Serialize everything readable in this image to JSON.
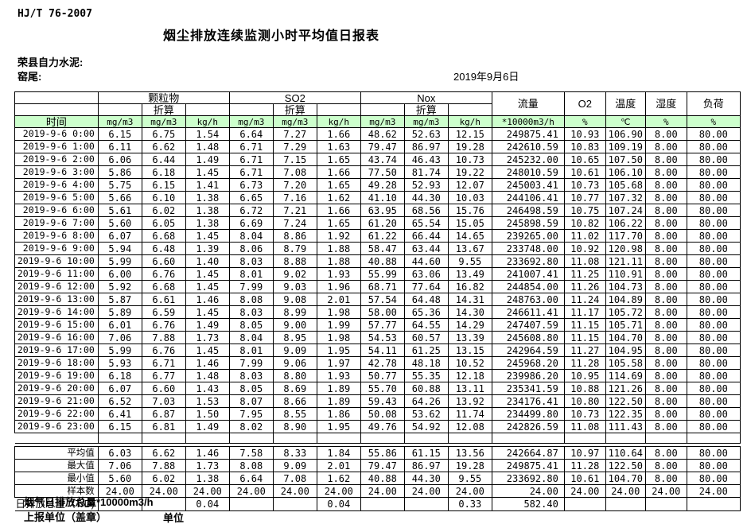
{
  "page": {
    "standard": "HJ/T  76-2007",
    "title": "烟尘排放连续监测小时平均值日报表",
    "company": "荣县自力水泥:",
    "station": "窑尾:",
    "date": "2019年9月6日"
  },
  "colors": {
    "header_green": "#ccffcc",
    "border": "#000000",
    "background": "#ffffff"
  },
  "table": {
    "header": {
      "time": "时间",
      "groups": [
        {
          "name": "颗粒物",
          "converted": "折算",
          "units": [
            "mg/m3",
            "mg/m3",
            "kg/h"
          ]
        },
        {
          "name": "SO2",
          "converted": "折算",
          "units": [
            "mg/m3",
            "mg/m3",
            "kg/h"
          ]
        },
        {
          "name": "Nox",
          "converted": "折算",
          "units": [
            "mg/m3",
            "mg/m3",
            "kg/h"
          ]
        }
      ],
      "flow": {
        "name": "流量",
        "unit": "*10000m3/h"
      },
      "o2": {
        "name": "O2",
        "unit": "%"
      },
      "temperature": {
        "name": "温度",
        "unit": "℃"
      },
      "humidity": {
        "name": "湿度",
        "unit": "%"
      },
      "load": {
        "name": "负荷",
        "unit": "%"
      }
    },
    "rows": [
      [
        "2019-9-6 0:00",
        "6.15",
        "6.75",
        "1.54",
        "6.64",
        "7.27",
        "1.66",
        "48.62",
        "52.63",
        "12.15",
        "249875.41",
        "10.93",
        "106.90",
        "8.00",
        "80.00"
      ],
      [
        "2019-9-6 1:00",
        "6.11",
        "6.62",
        "1.48",
        "6.71",
        "7.29",
        "1.63",
        "79.47",
        "86.97",
        "19.28",
        "242610.59",
        "10.83",
        "109.19",
        "8.00",
        "80.00"
      ],
      [
        "2019-9-6 2:00",
        "6.06",
        "6.44",
        "1.49",
        "6.71",
        "7.15",
        "1.65",
        "43.74",
        "46.43",
        "10.73",
        "245232.00",
        "10.65",
        "107.50",
        "8.00",
        "80.00"
      ],
      [
        "2019-9-6 3:00",
        "5.86",
        "6.18",
        "1.45",
        "6.71",
        "7.08",
        "1.66",
        "77.50",
        "81.74",
        "19.22",
        "248010.59",
        "10.61",
        "106.10",
        "8.00",
        "80.00"
      ],
      [
        "2019-9-6 4:00",
        "5.75",
        "6.15",
        "1.41",
        "6.73",
        "7.20",
        "1.65",
        "49.28",
        "52.93",
        "12.07",
        "245003.41",
        "10.73",
        "105.68",
        "8.00",
        "80.00"
      ],
      [
        "2019-9-6 5:00",
        "5.66",
        "6.10",
        "1.38",
        "6.65",
        "7.16",
        "1.62",
        "41.10",
        "44.30",
        "10.03",
        "244106.41",
        "10.77",
        "107.32",
        "8.00",
        "80.00"
      ],
      [
        "2019-9-6 6:00",
        "5.61",
        "6.02",
        "1.38",
        "6.72",
        "7.21",
        "1.66",
        "63.95",
        "68.56",
        "15.76",
        "246498.59",
        "10.75",
        "107.24",
        "8.00",
        "80.00"
      ],
      [
        "2019-9-6 7:00",
        "5.60",
        "6.05",
        "1.38",
        "6.69",
        "7.24",
        "1.65",
        "61.20",
        "65.54",
        "15.05",
        "245898.59",
        "10.82",
        "106.22",
        "8.00",
        "80.00"
      ],
      [
        "2019-9-6 8:00",
        "6.07",
        "6.68",
        "1.45",
        "8.04",
        "8.86",
        "1.92",
        "61.22",
        "66.44",
        "14.65",
        "239265.00",
        "11.02",
        "117.70",
        "8.00",
        "80.00"
      ],
      [
        "2019-9-6 9:00",
        "5.94",
        "6.48",
        "1.39",
        "8.06",
        "8.79",
        "1.88",
        "58.47",
        "63.44",
        "13.67",
        "233748.00",
        "10.92",
        "120.98",
        "8.00",
        "80.00"
      ],
      [
        "2019-9-6 10:00",
        "5.99",
        "6.60",
        "1.40",
        "8.03",
        "8.88",
        "1.88",
        "40.88",
        "44.60",
        "9.55",
        "233692.80",
        "11.08",
        "121.11",
        "8.00",
        "80.00"
      ],
      [
        "2019-9-6 11:00",
        "6.00",
        "6.76",
        "1.45",
        "8.01",
        "9.02",
        "1.93",
        "55.99",
        "63.06",
        "13.49",
        "241007.41",
        "11.25",
        "110.91",
        "8.00",
        "80.00"
      ],
      [
        "2019-9-6 12:00",
        "5.92",
        "6.68",
        "1.45",
        "7.99",
        "9.03",
        "1.96",
        "68.71",
        "77.64",
        "16.82",
        "244854.00",
        "11.26",
        "104.73",
        "8.00",
        "80.00"
      ],
      [
        "2019-9-6 13:00",
        "5.87",
        "6.61",
        "1.46",
        "8.08",
        "9.08",
        "2.01",
        "57.54",
        "64.48",
        "14.31",
        "248763.00",
        "11.24",
        "104.89",
        "8.00",
        "80.00"
      ],
      [
        "2019-9-6 14:00",
        "5.89",
        "6.59",
        "1.45",
        "8.03",
        "8.99",
        "1.98",
        "58.00",
        "65.36",
        "14.30",
        "246611.41",
        "11.17",
        "105.72",
        "8.00",
        "80.00"
      ],
      [
        "2019-9-6 15:00",
        "6.01",
        "6.76",
        "1.49",
        "8.05",
        "9.00",
        "1.99",
        "57.77",
        "64.55",
        "14.29",
        "247407.59",
        "11.15",
        "105.71",
        "8.00",
        "80.00"
      ],
      [
        "2019-9-6 16:00",
        "7.06",
        "7.88",
        "1.73",
        "8.04",
        "8.95",
        "1.98",
        "54.53",
        "60.57",
        "13.39",
        "245608.80",
        "11.15",
        "104.70",
        "8.00",
        "80.00"
      ],
      [
        "2019-9-6 17:00",
        "5.99",
        "6.76",
        "1.45",
        "8.01",
        "9.09",
        "1.95",
        "54.11",
        "61.25",
        "13.15",
        "242964.59",
        "11.27",
        "104.95",
        "8.00",
        "80.00"
      ],
      [
        "2019-9-6 18:00",
        "5.93",
        "6.71",
        "1.46",
        "7.99",
        "9.06",
        "1.97",
        "42.78",
        "48.18",
        "10.52",
        "245968.20",
        "11.28",
        "105.58",
        "8.00",
        "80.00"
      ],
      [
        "2019-9-6 19:00",
        "6.18",
        "6.77",
        "1.48",
        "8.03",
        "8.80",
        "1.93",
        "50.77",
        "55.35",
        "12.18",
        "239986.20",
        "10.95",
        "114.69",
        "8.00",
        "80.00"
      ],
      [
        "2019-9-6 20:00",
        "6.07",
        "6.60",
        "1.43",
        "8.05",
        "8.69",
        "1.89",
        "55.70",
        "60.88",
        "13.11",
        "235341.59",
        "10.88",
        "121.26",
        "8.00",
        "80.00"
      ],
      [
        "2019-9-6 21:00",
        "6.52",
        "7.03",
        "1.53",
        "8.07",
        "8.66",
        "1.89",
        "59.43",
        "64.26",
        "13.92",
        "234176.41",
        "10.80",
        "122.50",
        "8.00",
        "80.00"
      ],
      [
        "2019-9-6 22:00",
        "6.41",
        "6.87",
        "1.50",
        "7.95",
        "8.55",
        "1.86",
        "50.08",
        "53.62",
        "11.74",
        "234499.80",
        "10.73",
        "122.35",
        "8.00",
        "80.00"
      ],
      [
        "2019-9-6 23:00",
        "6.15",
        "6.81",
        "1.49",
        "8.02",
        "8.90",
        "1.95",
        "49.76",
        "54.92",
        "12.08",
        "242826.59",
        "11.08",
        "111.43",
        "8.00",
        "80.00"
      ]
    ],
    "summary": [
      {
        "label": "平均值",
        "values": [
          "6.03",
          "6.62",
          "1.46",
          "7.58",
          "8.33",
          "1.84",
          "55.86",
          "61.15",
          "13.56",
          "242664.87",
          "10.97",
          "110.64",
          "8.00",
          "80.00"
        ]
      },
      {
        "label": "最大值",
        "values": [
          "7.06",
          "7.88",
          "1.73",
          "8.08",
          "9.09",
          "2.01",
          "79.47",
          "86.97",
          "19.28",
          "249875.41",
          "11.28",
          "122.50",
          "8.00",
          "80.00"
        ]
      },
      {
        "label": "最小值",
        "values": [
          "5.60",
          "6.02",
          "1.38",
          "6.64",
          "7.08",
          "1.62",
          "40.88",
          "44.30",
          "9.55",
          "233692.80",
          "10.61",
          "104.70",
          "8.00",
          "80.00"
        ]
      },
      {
        "label": "样本数",
        "values": [
          "24.00",
          "24.00",
          "24.00",
          "24.00",
          "24.00",
          "24.00",
          "24.00",
          "24.00",
          "24.00",
          "24.00",
          "24.00",
          "24.00",
          "24.00",
          "24.00"
        ]
      }
    ],
    "total_row": {
      "label": "日排放总量（T/D)",
      "values": [
        "",
        "",
        "0.04",
        "",
        "",
        "0.04",
        "",
        "",
        "0.33",
        "582.40",
        "",
        "",
        "",
        ""
      ]
    }
  },
  "footer": {
    "flow_total_note": "烟气日排放总量*10000m3/h",
    "report_unit_label": "上报单位（盖章）",
    "unit_label": "单位"
  }
}
